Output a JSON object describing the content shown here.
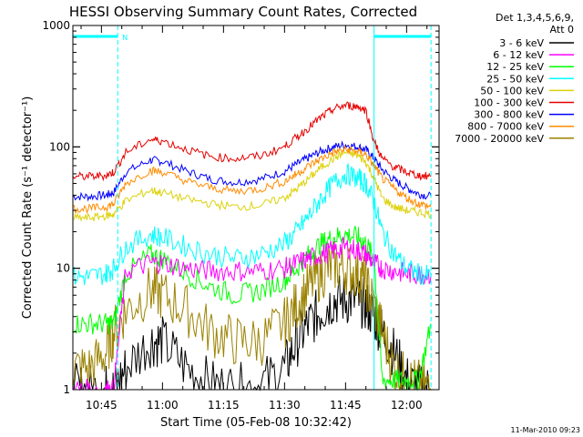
{
  "chart_data": {
    "type": "line",
    "title": "HESSI Observing Summary Count Rates, Corrected",
    "xlabel": "Start Time (05-Feb-08 10:32:42)",
    "ylabel": "Corrected Count Rate (s⁻¹ detector⁻¹)",
    "footer": "11-Mar-2010 09:23",
    "xlim_minutes": [
      10.633,
      12.133
    ],
    "xlim_clock": [
      "10:38",
      "12:08"
    ],
    "ylim": [
      1,
      1000
    ],
    "yscale": "log",
    "x_ticks": [
      "10:45",
      "11:00",
      "11:15",
      "11:30",
      "11:45",
      "12:00"
    ],
    "y_ticks": [
      "1",
      "10",
      "100",
      "1000"
    ],
    "legend": {
      "position": "right",
      "header": [
        "Det 1,3,4,5,6,9,",
        "Att 0"
      ],
      "entries": [
        {
          "label": "3 - 6 keV",
          "color": "#000000"
        },
        {
          "label": "6 - 12 keV",
          "color": "#ff00ff"
        },
        {
          "label": "12 - 25 keV",
          "color": "#00ff00"
        },
        {
          "label": "25 - 50 keV",
          "color": "#00ffff"
        },
        {
          "label": "50 - 100 keV",
          "color": "#dcd20a"
        },
        {
          "label": "100 - 300 keV",
          "color": "#e60000"
        },
        {
          "label": "300 - 800 keV",
          "color": "#0000ff"
        },
        {
          "label": "800 - 7000 keV",
          "color": "#ff8c00"
        },
        {
          "label": "7000 - 20000 keV",
          "color": "#9b8200"
        }
      ]
    },
    "annotations": {
      "night_label": "N",
      "night_intervals": [
        [
          "10:38",
          "10:49"
        ],
        [
          "11:52",
          "12:06"
        ]
      ],
      "vertical_lines": [
        "10:49",
        "11:52",
        "12:06"
      ]
    },
    "x_hours": [
      10.633,
      10.7,
      10.767,
      10.8,
      10.85,
      10.95,
      11.0,
      11.1,
      11.2,
      11.3,
      11.4,
      11.5,
      11.55,
      11.6,
      11.65,
      11.7,
      11.75,
      11.8,
      11.833,
      11.867,
      11.9,
      11.95,
      12.0,
      12.05,
      12.1
    ],
    "series": [
      {
        "name": "3 - 6 keV",
        "color": "#000000",
        "values": [
          1,
          1,
          1,
          1,
          1.5,
          2.5,
          2.5,
          1.5,
          1.1,
          1,
          1.1,
          1.5,
          2.5,
          3.5,
          4.5,
          5.5,
          5.5,
          5.5,
          5,
          4,
          3,
          2,
          1.2,
          1,
          1
        ]
      },
      {
        "name": "6 - 12 keV",
        "color": "#ff00ff",
        "values": [
          1,
          1,
          1,
          1,
          9.5,
          11,
          11,
          10,
          9.5,
          9.5,
          9.5,
          10,
          11,
          12,
          13,
          14,
          15,
          14,
          13,
          11,
          10,
          9.5,
          9,
          9,
          9
        ]
      },
      {
        "name": "12 - 25 keV",
        "color": "#00ff00",
        "values": [
          3.5,
          3.5,
          3.5,
          3.5,
          9,
          13,
          12,
          9,
          7,
          6,
          6.5,
          8,
          10,
          13,
          16,
          18,
          19,
          18,
          16,
          12,
          1.2,
          1.2,
          1.2,
          1.2,
          3.5
        ]
      },
      {
        "name": "25 - 50 keV",
        "color": "#00ffff",
        "values": [
          8.5,
          8.5,
          9,
          10,
          15,
          19,
          18,
          15,
          13,
          12,
          13,
          16,
          20,
          27,
          38,
          50,
          60,
          55,
          50,
          35,
          20,
          13,
          10,
          9,
          8.5
        ]
      },
      {
        "name": "50 - 100 keV",
        "color": "#dcd20a",
        "values": [
          26,
          26,
          27,
          28,
          36,
          44,
          42,
          37,
          34,
          32,
          33,
          38,
          45,
          55,
          68,
          80,
          90,
          85,
          75,
          55,
          38,
          32,
          30,
          29,
          28
        ]
      },
      {
        "name": "100 - 300 keV",
        "color": "#e60000",
        "values": [
          57,
          57,
          58,
          62,
          90,
          115,
          112,
          95,
          83,
          80,
          84,
          100,
          120,
          145,
          175,
          205,
          220,
          215,
          200,
          110,
          80,
          68,
          62,
          58,
          57
        ]
      },
      {
        "name": "300 - 800 keV",
        "color": "#0000ff",
        "values": [
          39,
          39,
          40,
          42,
          62,
          78,
          76,
          63,
          54,
          51,
          54,
          63,
          72,
          82,
          92,
          100,
          104,
          100,
          95,
          80,
          65,
          53,
          46,
          41,
          39
        ]
      },
      {
        "name": "800 - 7000 keV",
        "color": "#ff8c00",
        "values": [
          31,
          31,
          32,
          34,
          50,
          64,
          62,
          52,
          46,
          43,
          45,
          52,
          60,
          70,
          80,
          90,
          95,
          92,
          86,
          70,
          55,
          45,
          38,
          34,
          32
        ]
      },
      {
        "name": "7000 - 20000 keV",
        "color": "#9b8200",
        "values": [
          1.5,
          1.5,
          2,
          3,
          4.5,
          6.5,
          6,
          4.5,
          3,
          2.5,
          2.5,
          3.5,
          5,
          7,
          9,
          10.5,
          10,
          9,
          7.5,
          5,
          3,
          1.5,
          1.2,
          1.1,
          1
        ]
      }
    ]
  }
}
